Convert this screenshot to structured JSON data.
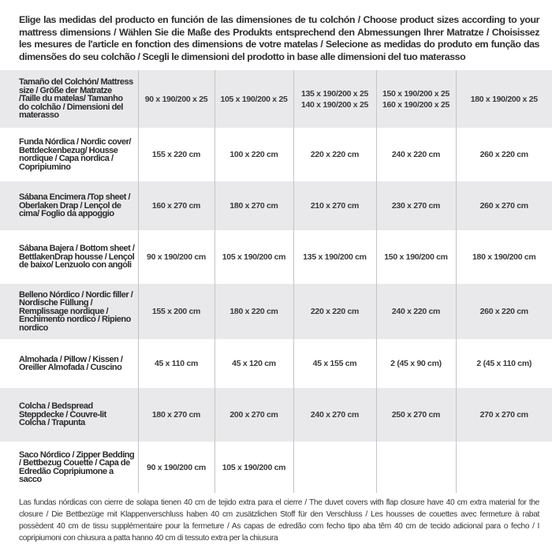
{
  "intro": "Elige las medidas del producto en función de las dimensiones de tu colchón / Choose product sizes according to your mattress dimensions / Wählen Sie die Maße des Produkts entsprechend den Abmessungen Ihrer Matratze / Choisissez les mesures de l'article en fonction des dimensions de votre matelas / Selecione as medidas do produto em função das dimensões do seu colchão / Scegli le dimensioni del prodotto in base alle dimensioni del tuo materasso",
  "table": {
    "header": {
      "label": "Tamaño del Colchón/ Mattress size / Größe der Matratze /Taille du matelas/ Tamanho do colchão / Dimensioni del materasso",
      "cells": [
        [
          "90 x 190/200 x 25"
        ],
        [
          "105 x 190/200 x 25"
        ],
        [
          "135 x 190/200 x 25",
          "140 x 190/200 x 25"
        ],
        [
          "150 x 190/200 x 25",
          "160 x 190/200 x 25"
        ],
        [
          "180 x 190/200 x 25"
        ]
      ]
    },
    "rows": [
      {
        "label": "Funda Nórdica /  Nordic cover/ Bettdeckenbezug/ Housse nordique  / Capa nordica / Copripiumino",
        "cells": [
          "155 x 220 cm",
          "100 x 220 cm",
          "220 x 220 cm",
          "240 x 220 cm",
          "260 x 220 cm"
        ]
      },
      {
        "label": "Sábana Encimera /Top sheet / Oberlaken Drap / Lençol de cima/ Foglio da appoggio",
        "cells": [
          "160 x 270 cm",
          "180 x 270 cm",
          "210 x 270 cm",
          "230 x 270 cm",
          "260 x 270 cm"
        ]
      },
      {
        "label": "Sábana Bajera / Bottom sheet / BettlakenDrap housse / Lençol de baixo/ Lenzuolo con angoli",
        "cells": [
          "90 x 190/200 cm",
          "105 x 190/200 cm",
          "135 x 190/200 cm",
          "150 x 190/200 cm",
          "180 x 190/200 cm"
        ]
      },
      {
        "label": "Belleno Nórdico / Nordic filler / Nordische Füllung / Remplissage nordique / Enchimento nordico / Ripieno nordico",
        "cells": [
          "155 x 200 cm",
          "180 x 220 cm",
          "220 x 220 cm",
          "240 x 220 cm",
          "260 x 220 cm"
        ]
      },
      {
        "label": "Almohada  / Pillow / Kissen / Oreiller Almofada / Cuscino",
        "cells": [
          "45 x 110 cm",
          "45 x 120 cm",
          "45 x 155 cm",
          "2 (45 x 90 cm)",
          "2 (45 x 110 cm)"
        ]
      },
      {
        "label": "Colcha / Bedspread Steppdecke / Couvre-lit Colcha / Trapunta",
        "cells": [
          "180 x 270 cm",
          "200 x 270 cm",
          "240 x 270 cm",
          "250 x 270 cm",
          "270 x 270 cm"
        ]
      },
      {
        "label": "Saco Nórdico / Zipper Bedding / Bettbezug Couette  / Capa de Edredão Copripiumone a sacco",
        "cells": [
          "90 x 190/200 cm",
          "105 x 190/200 cm",
          "",
          "",
          ""
        ]
      }
    ]
  },
  "note": "Las fundas nórdicas con cierre de solapa tienen 40 cm de tejido extra para el cierre   /  The duvet covers with flap closure have 40 cm extra material for the closure / Die Bettbezüge mit Klappenverschluss haben 40 cm zusätzlichen Stoff für den Verschluss / Les housses de couettes avec fermeture à rabat possèdent 40 cm de tissu supplémentaire pour la fermeture / As capas de edredão com fecho tipo aba têm 40 cm de tecido adicional para o fecho / I copripiumoni con chiusura a patta hanno 40 cm di tessuto extra per la chiusura",
  "colors": {
    "row_shade": "#e9e9eb",
    "text": "#333333",
    "divider": "#c4c4c4"
  }
}
